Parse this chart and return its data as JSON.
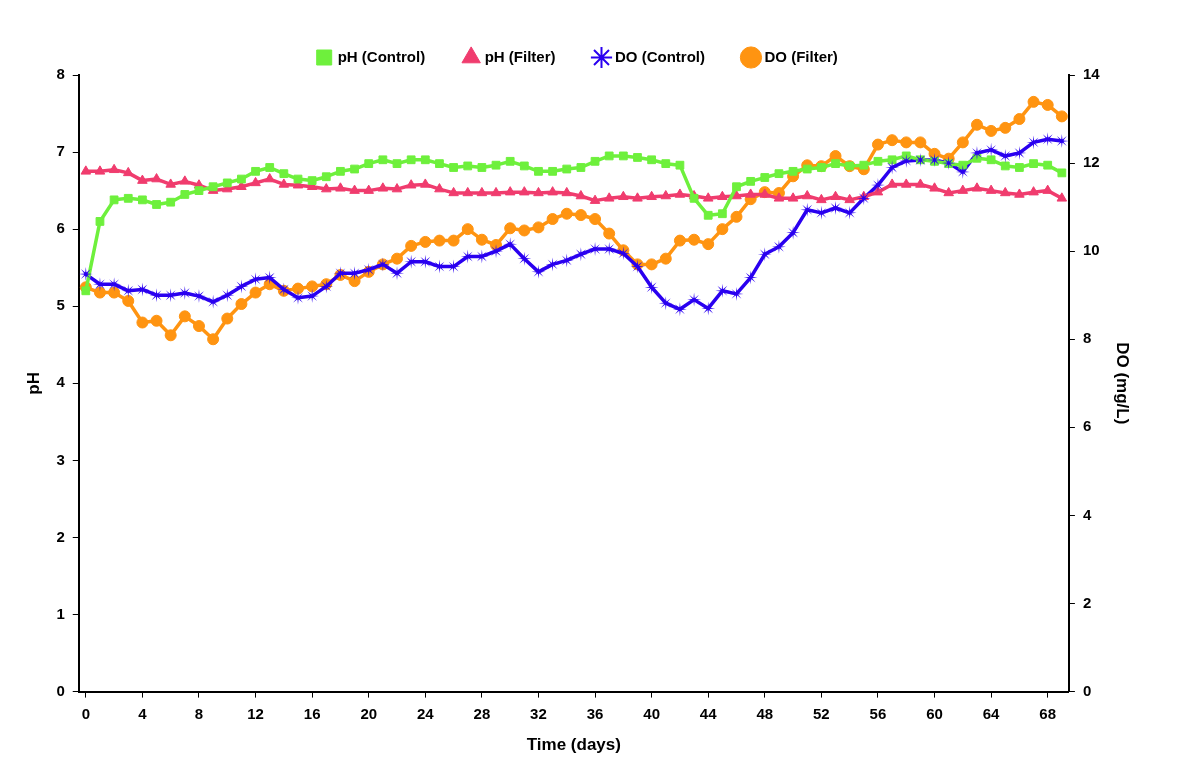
{
  "chart_data": {
    "type": "line",
    "xlabel": "Time (days)",
    "ylabel": "pH",
    "y2label": "DO (mg/L)",
    "x": [
      0,
      1,
      2,
      3,
      4,
      5,
      6,
      7,
      8,
      9,
      10,
      11,
      12,
      13,
      14,
      15,
      16,
      17,
      18,
      19,
      20,
      21,
      22,
      23,
      24,
      25,
      26,
      27,
      28,
      29,
      30,
      31,
      32,
      33,
      34,
      35,
      36,
      37,
      38,
      39,
      40,
      41,
      42,
      43,
      44,
      45,
      46,
      47,
      48,
      49,
      50,
      51,
      52,
      53,
      54,
      55,
      56,
      57,
      58,
      59,
      60,
      61,
      62,
      63,
      64,
      65,
      66,
      67,
      68,
      69
    ],
    "xlim": [
      -0.5,
      69.5
    ],
    "xticks": [
      0,
      4,
      8,
      12,
      16,
      20,
      24,
      28,
      32,
      36,
      40,
      44,
      48,
      52,
      56,
      60,
      64,
      68
    ],
    "ylim": [
      0,
      8
    ],
    "yticks": [
      0,
      1,
      2,
      3,
      4,
      5,
      6,
      7,
      8
    ],
    "y2lim": [
      0,
      14
    ],
    "y2ticks": [
      0,
      2,
      4,
      6,
      8,
      10,
      12,
      14
    ],
    "grid": false,
    "legend": "top",
    "line_style": "solid",
    "series": [
      {
        "name": "pH (Control)",
        "color": "#6ef03c",
        "marker": "square",
        "axis": "y",
        "values": [
          5.2,
          6.1,
          6.38,
          6.4,
          6.38,
          6.32,
          6.35,
          6.45,
          6.5,
          6.55,
          6.6,
          6.65,
          6.75,
          6.8,
          6.72,
          6.65,
          6.63,
          6.68,
          6.75,
          6.78,
          6.85,
          6.9,
          6.85,
          6.9,
          6.9,
          6.85,
          6.8,
          6.82,
          6.8,
          6.83,
          6.88,
          6.82,
          6.75,
          6.75,
          6.78,
          6.8,
          6.88,
          6.95,
          6.95,
          6.93,
          6.9,
          6.85,
          6.83,
          6.4,
          6.18,
          6.2,
          6.55,
          6.62,
          6.67,
          6.72,
          6.75,
          6.78,
          6.8,
          6.85,
          6.82,
          6.83,
          6.88,
          6.9,
          6.95,
          6.9,
          6.88,
          6.85,
          6.83,
          6.92,
          6.9,
          6.82,
          6.8,
          6.85,
          6.83,
          6.73
        ]
      },
      {
        "name": "pH (Filter)",
        "color": "#f03c6e",
        "marker": "triangle",
        "axis": "y",
        "values": [
          6.75,
          6.75,
          6.77,
          6.73,
          6.63,
          6.65,
          6.58,
          6.62,
          6.57,
          6.5,
          6.52,
          6.55,
          6.6,
          6.65,
          6.58,
          6.57,
          6.55,
          6.52,
          6.53,
          6.5,
          6.5,
          6.53,
          6.52,
          6.57,
          6.58,
          6.52,
          6.47,
          6.47,
          6.47,
          6.47,
          6.48,
          6.48,
          6.47,
          6.48,
          6.47,
          6.43,
          6.37,
          6.4,
          6.42,
          6.4,
          6.42,
          6.43,
          6.45,
          6.43,
          6.4,
          6.42,
          6.43,
          6.45,
          6.45,
          6.4,
          6.4,
          6.43,
          6.38,
          6.42,
          6.38,
          6.42,
          6.48,
          6.58,
          6.58,
          6.58,
          6.53,
          6.47,
          6.5,
          6.53,
          6.5,
          6.47,
          6.45,
          6.48,
          6.5,
          6.4
        ]
      },
      {
        "name": "DO (Control)",
        "color": "#2a00f0",
        "marker": "star",
        "axis": "y2",
        "values": [
          9.48,
          9.25,
          9.25,
          9.1,
          9.13,
          9.0,
          9.0,
          9.05,
          8.98,
          8.85,
          9.0,
          9.2,
          9.36,
          9.4,
          9.13,
          8.94,
          8.98,
          9.2,
          9.5,
          9.5,
          9.58,
          9.7,
          9.5,
          9.76,
          9.76,
          9.65,
          9.65,
          9.88,
          9.88,
          10.0,
          10.16,
          9.83,
          9.53,
          9.7,
          9.79,
          9.93,
          10.05,
          10.05,
          9.95,
          9.65,
          9.18,
          8.82,
          8.68,
          8.9,
          8.7,
          9.1,
          9.03,
          9.4,
          9.93,
          10.1,
          10.42,
          10.94,
          10.87,
          10.98,
          10.87,
          11.2,
          11.5,
          11.9,
          12.05,
          12.07,
          12.07,
          12.0,
          11.8,
          12.23,
          12.3,
          12.16,
          12.23,
          12.47,
          12.54,
          12.5
        ]
      },
      {
        "name": "DO (Filter)",
        "color": "#ff9411",
        "marker": "circle",
        "axis": "y2",
        "values": [
          9.18,
          9.06,
          9.06,
          8.87,
          8.38,
          8.42,
          8.09,
          8.52,
          8.3,
          8.0,
          8.47,
          8.8,
          9.06,
          9.25,
          9.1,
          9.15,
          9.2,
          9.25,
          9.46,
          9.32,
          9.53,
          9.7,
          9.83,
          10.12,
          10.21,
          10.24,
          10.24,
          10.5,
          10.26,
          10.14,
          10.52,
          10.47,
          10.54,
          10.73,
          10.85,
          10.82,
          10.73,
          10.4,
          10.02,
          9.7,
          9.7,
          9.83,
          10.24,
          10.26,
          10.16,
          10.5,
          10.78,
          11.18,
          11.34,
          11.32,
          11.7,
          11.95,
          11.93,
          12.16,
          11.93,
          11.86,
          12.42,
          12.52,
          12.47,
          12.47,
          12.21,
          12.1,
          12.47,
          12.87,
          12.73,
          12.8,
          13.0,
          13.39,
          13.32,
          13.06
        ]
      }
    ]
  }
}
